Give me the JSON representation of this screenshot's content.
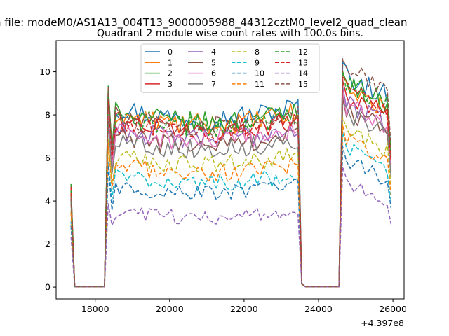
{
  "figure": {
    "suptitle": "n file: modeM0/AS1A13_004T13_9000005988_44312cztM0_level2_quad_clean",
    "title": "Quadrant 2 module wise count rates with 100.0s bins."
  },
  "chart_data": {
    "type": "line",
    "title": "Quadrant 2 module wise count rates with 100.0s bins.",
    "xlabel": "",
    "ylabel": "",
    "x_offset_label": "+4.397e8",
    "xlim": [
      16950,
      26300
    ],
    "ylim": [
      -0.55,
      11.45
    ],
    "x_ticks": [
      18000,
      20000,
      22000,
      24000,
      26000
    ],
    "y_ticks": [
      0,
      2,
      4,
      6,
      8,
      10
    ],
    "legend_position": "upper-center",
    "legend_columns": 4,
    "grid": false,
    "segments": {
      "first": [
        17350,
        18250
      ],
      "second": [
        18350,
        23450
      ],
      "third": [
        24650,
        25950
      ]
    },
    "series": [
      {
        "name": "0",
        "color": "#1f77b4",
        "dash": "solid",
        "level": 8.4,
        "peak": 9.3,
        "tail": 9.3
      },
      {
        "name": "1",
        "color": "#ff7f0e",
        "dash": "solid",
        "level": 8.1,
        "peak": 9.0,
        "tail": 8.7
      },
      {
        "name": "2",
        "color": "#2ca02c",
        "dash": "solid",
        "level": 8.2,
        "peak": 9.2,
        "tail": 8.9
      },
      {
        "name": "3",
        "color": "#d62728",
        "dash": "solid",
        "level": 7.8,
        "peak": 8.8,
        "tail": 8.4
      },
      {
        "name": "4",
        "color": "#9467bd",
        "dash": "solid",
        "level": 7.4,
        "peak": 8.3,
        "tail": 8.0
      },
      {
        "name": "5",
        "color": "#8c564b",
        "dash": "solid",
        "level": 7.1,
        "peak": 8.0,
        "tail": 7.7
      },
      {
        "name": "6",
        "color": "#e377c2",
        "dash": "solid",
        "level": 7.3,
        "peak": 8.2,
        "tail": 7.9
      },
      {
        "name": "7",
        "color": "#7f7f7f",
        "dash": "solid",
        "level": 6.9,
        "peak": 7.8,
        "tail": 7.5
      },
      {
        "name": "8",
        "color": "#bcbd22",
        "dash": "dashed",
        "level": 6.1,
        "peak": 7.0,
        "tail": 6.7
      },
      {
        "name": "9",
        "color": "#17becf",
        "dash": "dashed",
        "level": 5.2,
        "peak": 6.0,
        "tail": 5.9
      },
      {
        "name": "10",
        "color": "#1f77b4",
        "dash": "dashed",
        "level": 4.7,
        "peak": 5.5,
        "tail": 5.4
      },
      {
        "name": "11",
        "color": "#ff7f0e",
        "dash": "dashed",
        "level": 5.7,
        "peak": 6.6,
        "tail": 6.3
      },
      {
        "name": "12",
        "color": "#2ca02c",
        "dash": "dashed",
        "level": 8.0,
        "peak": 9.0,
        "tail": 9.0
      },
      {
        "name": "13",
        "color": "#d62728",
        "dash": "dashed",
        "level": 7.7,
        "peak": 8.7,
        "tail": 8.6
      },
      {
        "name": "14",
        "color": "#9467bd",
        "dash": "dashed",
        "level": 3.5,
        "peak": 3.9,
        "tail": 4.3
      },
      {
        "name": "15",
        "color": "#8c564b",
        "dash": "dashed",
        "level": 8.0,
        "peak": 9.4,
        "tail": 9.5
      }
    ]
  }
}
